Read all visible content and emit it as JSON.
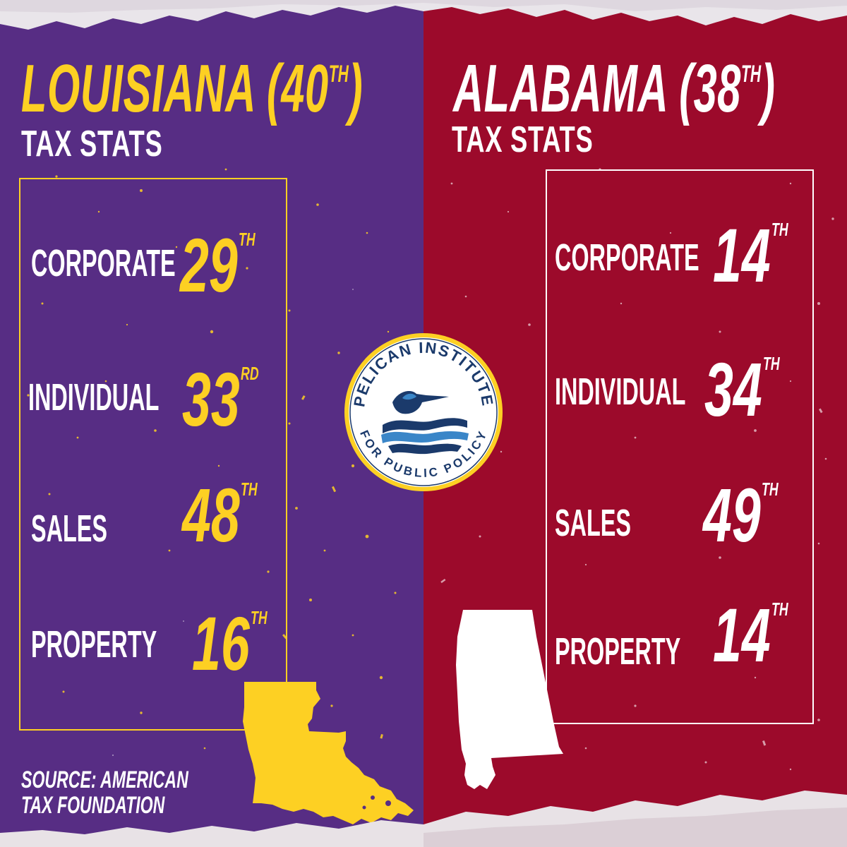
{
  "colors": {
    "louisiana_purple": "#572d84",
    "louisiana_gold": "#fdd023",
    "alabama_crimson": "#9c0a2b",
    "text_white": "#ffffff"
  },
  "louisiana": {
    "name": "LOUISIANA",
    "rank_open": "(40",
    "rank_suffix": "TH",
    "rank_close": ")",
    "subtitle": "TAX STATS",
    "stats": [
      {
        "label": "CORPORATE",
        "rank": "29",
        "suffix": "TH"
      },
      {
        "label": "INDIVIDUAL",
        "rank": "33",
        "suffix": "RD"
      },
      {
        "label": "SALES",
        "rank": "48",
        "suffix": "TH"
      },
      {
        "label": "PROPERTY",
        "rank": "16",
        "suffix": "TH"
      }
    ],
    "map_icon": "louisiana-state-silhouette"
  },
  "alabama": {
    "name": "ALABAMA",
    "rank_open": "(38",
    "rank_suffix": "TH",
    "rank_close": ")",
    "subtitle": "TAX STATS",
    "stats": [
      {
        "label": "CORPORATE",
        "rank": "14",
        "suffix": "TH"
      },
      {
        "label": "INDIVIDUAL",
        "rank": "34",
        "suffix": "TH"
      },
      {
        "label": "SALES",
        "rank": "49",
        "suffix": "TH"
      },
      {
        "label": "PROPERTY",
        "rank": "14",
        "suffix": "TH"
      }
    ],
    "map_icon": "alabama-state-silhouette"
  },
  "logo": {
    "top_text": "PELICAN INSTITUTE",
    "bottom_text": "FOR PUBLIC POLICY",
    "icon": "pelican-logo-icon"
  },
  "source": {
    "line1": "SOURCE:  AMERICAN",
    "line2": "TAX FOUNDATION"
  }
}
